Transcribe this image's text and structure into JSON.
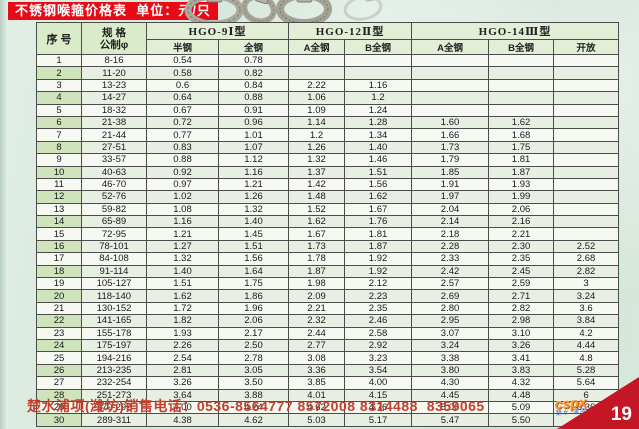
{
  "title": "不锈钢喉箍价格表  单位：元/只",
  "table": {
    "header": {
      "serial": "序  号",
      "spec_line1": "规  格",
      "spec_line2": "公制φ",
      "groups": [
        {
          "label": "HGO-9Ⅰ型",
          "subs": [
            "半钢",
            "全钢"
          ]
        },
        {
          "label": "HGO-12Ⅱ型",
          "subs": [
            "A全钢",
            "B全钢"
          ]
        },
        {
          "label": "HGO-14Ⅲ型",
          "subs": [
            "A全钢",
            "B全钢",
            "开放"
          ]
        }
      ]
    },
    "rows": [
      [
        "1",
        "8-16",
        "0.54",
        "0.78",
        "",
        "",
        "",
        "",
        ""
      ],
      [
        "2",
        "11-20",
        "0.58",
        "0.82",
        "",
        "",
        "",
        "",
        ""
      ],
      [
        "3",
        "13-23",
        "0.6",
        "0.84",
        "2.22",
        "1.16",
        "",
        "",
        ""
      ],
      [
        "4",
        "14-27",
        "0.64",
        "0.88",
        "1.06",
        "1.2",
        "",
        "",
        ""
      ],
      [
        "5",
        "18-32",
        "0.67",
        "0.91",
        "1.09",
        "1.24",
        "",
        "",
        ""
      ],
      [
        "6",
        "21-38",
        "0.72",
        "0.96",
        "1.14",
        "1.28",
        "1.60",
        "1.62",
        ""
      ],
      [
        "7",
        "21-44",
        "0.77",
        "1.01",
        "1.2",
        "1.34",
        "1.66",
        "1.68",
        ""
      ],
      [
        "8",
        "27-51",
        "0.83",
        "1.07",
        "1.26",
        "1.40",
        "1.73",
        "1.75",
        ""
      ],
      [
        "9",
        "33-57",
        "0.88",
        "1.12",
        "1.32",
        "1.46",
        "1.79",
        "1.81",
        ""
      ],
      [
        "10",
        "40-63",
        "0.92",
        "1.16",
        "1.37",
        "1.51",
        "1.85",
        "1.87",
        ""
      ],
      [
        "11",
        "46-70",
        "0.97",
        "1.21",
        "1.42",
        "1.56",
        "1.91",
        "1.93",
        ""
      ],
      [
        "12",
        "52-76",
        "1.02",
        "1.26",
        "1.48",
        "1.62",
        "1.97",
        "1.99",
        ""
      ],
      [
        "13",
        "59-82",
        "1.08",
        "1.32",
        "1.52",
        "1.67",
        "2.04",
        "2.06",
        ""
      ],
      [
        "14",
        "65-89",
        "1.16",
        "1.40",
        "1.62",
        "1.76",
        "2.14",
        "2.16",
        ""
      ],
      [
        "15",
        "72-95",
        "1.21",
        "1.45",
        "1.67",
        "1.81",
        "2.18",
        "2.21",
        ""
      ],
      [
        "16",
        "78-101",
        "1.27",
        "1.51",
        "1.73",
        "1.87",
        "2.28",
        "2.30",
        "2.52"
      ],
      [
        "17",
        "84-108",
        "1.32",
        "1.56",
        "1.78",
        "1.92",
        "2.33",
        "2.35",
        "2.68"
      ],
      [
        "18",
        "91-114",
        "1.40",
        "1.64",
        "1.87",
        "1.92",
        "2.42",
        "2.45",
        "2.82"
      ],
      [
        "19",
        "105-127",
        "1.51",
        "1.75",
        "1.98",
        "2.12",
        "2.57",
        "2.59",
        "3"
      ],
      [
        "20",
        "118-140",
        "1.62",
        "1.86",
        "2.09",
        "2.23",
        "2.69",
        "2.71",
        "3.24"
      ],
      [
        "21",
        "130-152",
        "1.72",
        "1.96",
        "2.21",
        "2.35",
        "2.80",
        "2.82",
        "3.6"
      ],
      [
        "22",
        "141-165",
        "1.82",
        "2.06",
        "2.32",
        "2.46",
        "2.95",
        "2.98",
        "3.84"
      ],
      [
        "23",
        "155-178",
        "1.93",
        "2.17",
        "2.44",
        "2.58",
        "3.07",
        "3.10",
        "4.2"
      ],
      [
        "24",
        "175-197",
        "2.26",
        "2.50",
        "2.77",
        "2.92",
        "3.24",
        "3.26",
        "4.44"
      ],
      [
        "25",
        "194-216",
        "2.54",
        "2.78",
        "3.08",
        "3.23",
        "3.38",
        "3.41",
        "4.8"
      ],
      [
        "26",
        "213-235",
        "2.81",
        "3.05",
        "3.36",
        "3.54",
        "3.80",
        "3.83",
        "5.28"
      ],
      [
        "27",
        "232-254",
        "3.26",
        "3.50",
        "3.85",
        "4.00",
        "4.30",
        "4.32",
        "5.64"
      ],
      [
        "28",
        "251-273",
        "3.64",
        "3.88",
        "4.01",
        "4.15",
        "4.45",
        "4.48",
        "6"
      ],
      [
        "29",
        "270-292",
        "4.00",
        "4.24",
        "4.62",
        "4.76",
        "5.06",
        "5.09",
        "6.36"
      ],
      [
        "30",
        "289-311",
        "4.38",
        "4.62",
        "5.03",
        "5.17",
        "5.47",
        "5.50",
        "6.6"
      ]
    ]
  },
  "footer": {
    "phone_line": "楚水浦项(潍坊)销售电话：0536-8564777 8572008 8314488  8359065",
    "page_number": "19",
    "logo_text": "cspx",
    "logo_subtext": "楚水·浦项"
  },
  "colors": {
    "title_bg": "#e60b16",
    "serial_column_bg": "#d7e9c5",
    "header_bg": "#e2efd6",
    "corner_triangle": "#c51626",
    "phone_text": "#c2402e",
    "logo_orange": "#f29422"
  }
}
